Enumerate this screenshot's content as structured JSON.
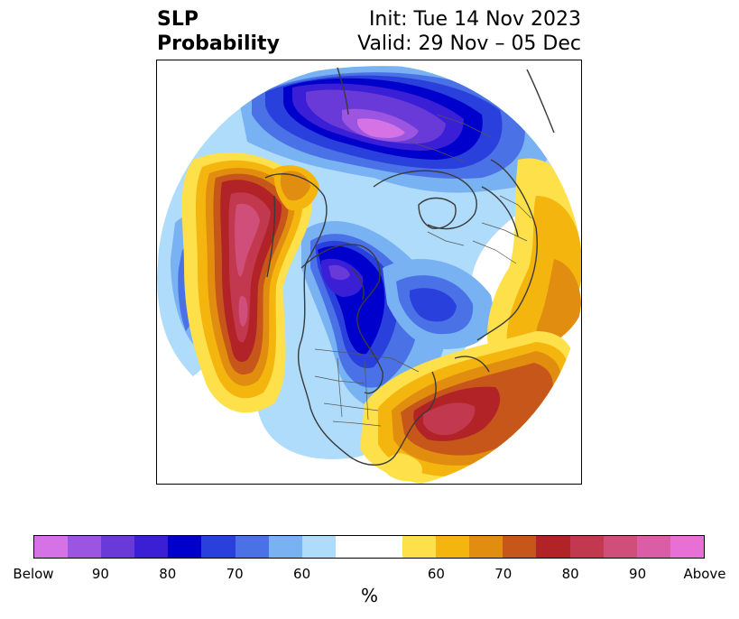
{
  "title": {
    "left_line1": "SLP",
    "left_line2": "Probability",
    "right_line1": "Init: Tue 14 Nov 2023",
    "right_line2": "Valid: 29 Nov – 05 Dec"
  },
  "colorbar": {
    "unit": "%",
    "colors": [
      "#d573e6",
      "#9c55e0",
      "#6a3ad8",
      "#3a1fd6",
      "#0000cc",
      "#2a40dc",
      "#4a72e6",
      "#78b2f2",
      "#afdcfa",
      "#ffffff",
      "#ffffff",
      "#fde04a",
      "#f4b60e",
      "#e08d10",
      "#c7561a",
      "#b22328",
      "#c2384e",
      "#cf4e7a",
      "#db5da6",
      "#e76fd6"
    ],
    "ticks": [
      {
        "label": "Below",
        "index": 0
      },
      {
        "label": "90",
        "index": 2
      },
      {
        "label": "80",
        "index": 4
      },
      {
        "label": "70",
        "index": 6
      },
      {
        "label": "60",
        "index": 8
      },
      {
        "label": "60",
        "index": 12
      },
      {
        "label": "70",
        "index": 14
      },
      {
        "label": "80",
        "index": 16
      },
      {
        "label": "90",
        "index": 18
      },
      {
        "label": "Above",
        "index": 20
      }
    ]
  }
}
